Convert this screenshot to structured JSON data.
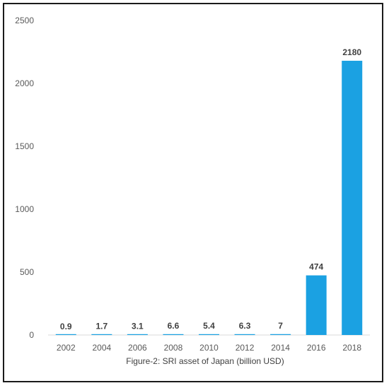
{
  "chart_data": {
    "type": "bar",
    "title": "",
    "caption": "Figure-2: SRI asset of Japan (billion USD)",
    "xlabel": "",
    "ylabel": "",
    "categories": [
      "2002",
      "2004",
      "2006",
      "2008",
      "2010",
      "2012",
      "2014",
      "2016",
      "2018"
    ],
    "values": [
      0.9,
      1.7,
      3.1,
      6.6,
      5.4,
      6.3,
      7,
      474,
      2180
    ],
    "data_labels": [
      "0.9",
      "1.7",
      "3.1",
      "6.6",
      "5.4",
      "6.3",
      "7",
      "474",
      "2180"
    ],
    "ylim": [
      0,
      2500
    ],
    "yticks": [
      0,
      500,
      1000,
      1500,
      2000,
      2500
    ],
    "grid": false,
    "legend": "none",
    "bar_color": "#1ba1e2"
  }
}
